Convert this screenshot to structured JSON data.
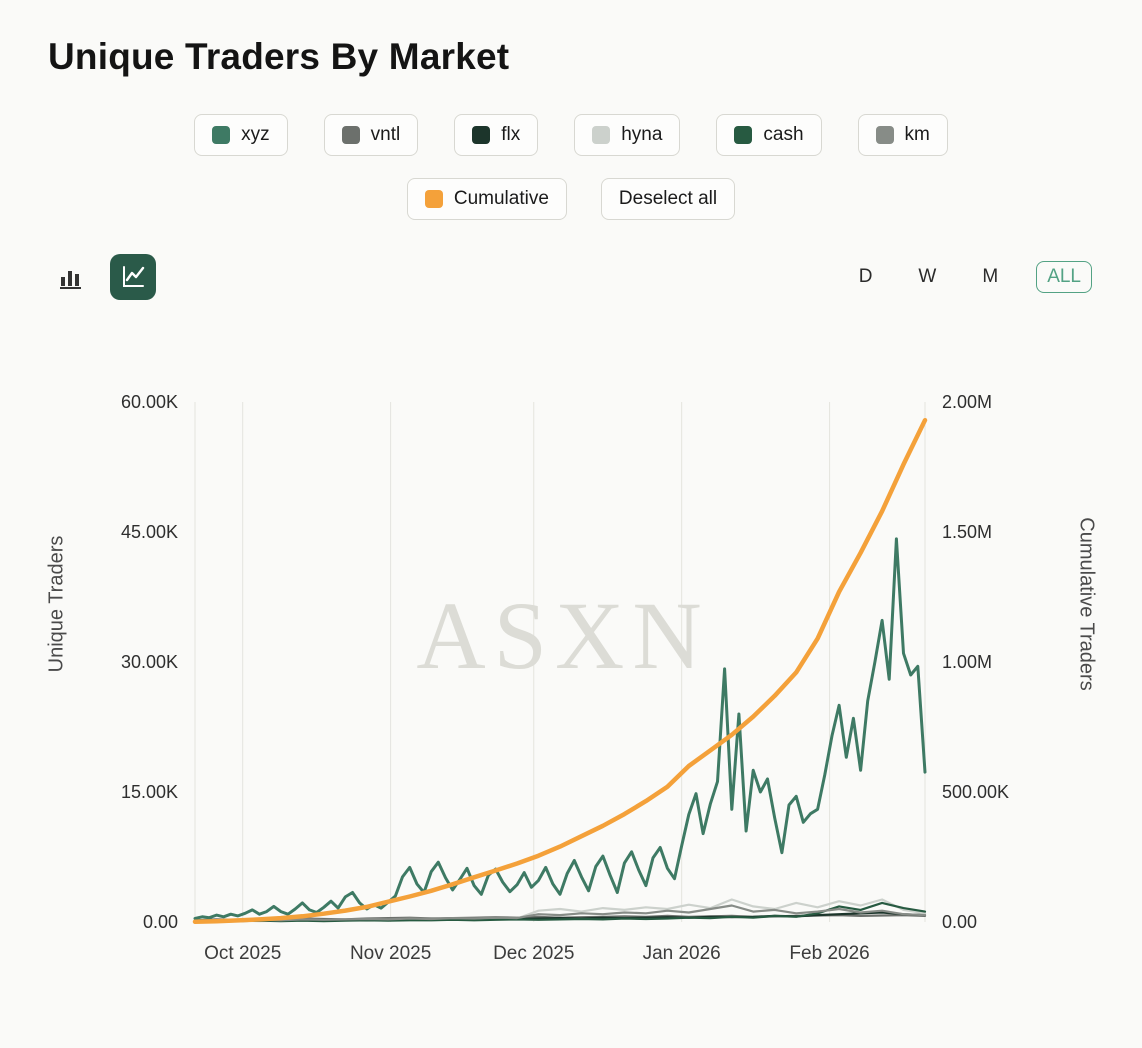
{
  "title": "Unique Traders By Market",
  "legend": {
    "markets": [
      {
        "label": "xyz",
        "color": "#3e7a64"
      },
      {
        "label": "vntl",
        "color": "#6c706c"
      },
      {
        "label": "flx",
        "color": "#1c352b"
      },
      {
        "label": "hyna",
        "color": "#ccd1cc"
      },
      {
        "label": "cash",
        "color": "#275a41"
      },
      {
        "label": "km",
        "color": "#878c87"
      }
    ],
    "cumulative": {
      "label": "Cumulative",
      "color": "#f4a13a"
    },
    "deselect_label": "Deselect all"
  },
  "toolbar": {
    "chart_types": [
      {
        "name": "bar",
        "active": false
      },
      {
        "name": "line",
        "active": true
      }
    ],
    "ranges": [
      {
        "label": "D",
        "active": false
      },
      {
        "label": "W",
        "active": false
      },
      {
        "label": "M",
        "active": false
      },
      {
        "label": "ALL",
        "active": true
      }
    ],
    "accent_color": "#53a284",
    "selected_bg": "#2a5a49"
  },
  "chart_data": {
    "type": "line",
    "watermark": "ASXN",
    "x_unit": "days since 2025-09-21",
    "x_max": 153,
    "x_gridlines": [
      {
        "day": 10,
        "label": "Oct 2025"
      },
      {
        "day": 41,
        "label": "Nov 2025"
      },
      {
        "day": 71,
        "label": "Dec 2025"
      },
      {
        "day": 102,
        "label": "Jan 2026"
      },
      {
        "day": 133,
        "label": "Feb 2026"
      }
    ],
    "left_axis": {
      "title": "Unique Traders",
      "max": 60,
      "unit": "thousands",
      "ticks": [
        {
          "v": 0,
          "label": "0.00"
        },
        {
          "v": 15,
          "label": "15.00K"
        },
        {
          "v": 30,
          "label": "30.00K"
        },
        {
          "v": 45,
          "label": "45.00K"
        },
        {
          "v": 60,
          "label": "60.00K"
        }
      ]
    },
    "right_axis": {
      "title": "Cumulative Traders",
      "max": 2000,
      "unit": "thousands",
      "ticks": [
        {
          "v": 0,
          "label": "0.00"
        },
        {
          "v": 500,
          "label": "500.00K"
        },
        {
          "v": 1000,
          "label": "1.00M"
        },
        {
          "v": 1500,
          "label": "1.50M"
        },
        {
          "v": 2000,
          "label": "2.00M"
        }
      ]
    },
    "series": [
      {
        "name": "vntl",
        "axis": "left",
        "color": "#6c706c",
        "width": 2.2,
        "x": {
          "start": 0,
          "step": 4.5
        },
        "values": [
          0.2,
          0.3,
          0.25,
          0.35,
          0.3,
          0.4,
          0.35,
          0.3,
          0.4,
          0.45,
          0.5,
          0.4,
          0.45,
          0.5,
          0.55,
          0.5,
          0.6,
          0.5,
          0.55,
          0.6,
          0.65,
          0.6,
          0.7,
          0.6,
          0.65,
          0.7,
          0.6,
          0.65,
          0.7,
          0.75,
          0.8,
          0.7,
          0.75,
          0.8,
          0.7
        ]
      },
      {
        "name": "flx",
        "axis": "left",
        "color": "#1c352b",
        "width": 2.2,
        "x": {
          "start": 0,
          "step": 4.5
        },
        "values": [
          0.1,
          0.15,
          0.1,
          0.2,
          0.15,
          0.2,
          0.25,
          0.2,
          0.3,
          0.25,
          0.3,
          0.35,
          0.3,
          0.35,
          0.4,
          0.35,
          0.4,
          0.45,
          0.4,
          0.5,
          0.45,
          0.5,
          0.55,
          0.5,
          0.6,
          0.55,
          0.6,
          0.7,
          0.65,
          0.8,
          0.9,
          1.0,
          1.1,
          0.9,
          0.8
        ]
      },
      {
        "name": "hyna",
        "axis": "left",
        "color": "#ccd1cc",
        "width": 2.2,
        "x": {
          "start": 0,
          "step": 4.5
        },
        "values": [
          0.1,
          0.1,
          0.15,
          0.1,
          0.15,
          0.2,
          0.15,
          0.2,
          0.15,
          0.2,
          0.25,
          0.2,
          0.3,
          0.25,
          0.3,
          0.4,
          1.3,
          1.5,
          1.2,
          1.6,
          1.4,
          1.7,
          1.5,
          2.0,
          1.6,
          2.6,
          1.8,
          1.5,
          2.2,
          1.7,
          2.4,
          1.9,
          2.6,
          1.4,
          1.0
        ]
      },
      {
        "name": "cash",
        "axis": "left",
        "color": "#275a41",
        "width": 2.2,
        "x": {
          "start": 0,
          "step": 4.5
        },
        "values": [
          0.1,
          0.1,
          0.1,
          0.15,
          0.1,
          0.15,
          0.1,
          0.15,
          0.2,
          0.15,
          0.2,
          0.2,
          0.25,
          0.2,
          0.25,
          0.3,
          0.25,
          0.3,
          0.35,
          0.3,
          0.4,
          0.35,
          0.4,
          0.5,
          0.45,
          0.6,
          0.5,
          0.7,
          0.6,
          1.0,
          1.8,
          1.4,
          2.2,
          1.6,
          1.2
        ]
      },
      {
        "name": "km",
        "axis": "left",
        "color": "#878c87",
        "width": 2.2,
        "x": {
          "start": 0,
          "step": 4.5
        },
        "values": [
          0.15,
          0.2,
          0.15,
          0.25,
          0.2,
          0.3,
          0.25,
          0.3,
          0.35,
          0.3,
          0.4,
          0.35,
          0.45,
          0.4,
          0.5,
          0.45,
          0.9,
          0.8,
          1.0,
          0.9,
          1.1,
          1.0,
          1.3,
          1.1,
          1.5,
          1.9,
          1.2,
          1.4,
          1.0,
          1.2,
          1.5,
          1.1,
          1.3,
          0.9,
          0.8
        ]
      },
      {
        "name": "xyz",
        "axis": "left",
        "color": "#3e7a64",
        "width": 3,
        "x": {
          "start": 0,
          "step": 1.5
        },
        "values": [
          0.4,
          0.6,
          0.5,
          0.8,
          0.6,
          0.9,
          0.7,
          1.0,
          1.4,
          0.9,
          1.2,
          1.8,
          1.2,
          0.9,
          1.5,
          2.2,
          1.4,
          1.1,
          1.7,
          2.4,
          1.6,
          2.9,
          3.4,
          2.2,
          1.5,
          2.0,
          1.6,
          2.3,
          3.0,
          5.2,
          6.3,
          4.4,
          3.4,
          5.8,
          6.9,
          5.1,
          3.7,
          4.9,
          6.2,
          4.2,
          3.2,
          5.4,
          6.1,
          4.6,
          3.5,
          4.3,
          5.7,
          4.0,
          4.8,
          6.3,
          4.4,
          3.2,
          5.6,
          7.1,
          5.2,
          3.6,
          6.4,
          7.6,
          5.4,
          3.4,
          6.8,
          8.1,
          6.0,
          4.2,
          7.4,
          8.6,
          6.2,
          5.0,
          8.8,
          12.4,
          14.8,
          10.2,
          13.6,
          16.2,
          29.2,
          13.0,
          24.0,
          10.5,
          17.5,
          15.0,
          16.5,
          12.0,
          8.0,
          13.5,
          14.5,
          11.5,
          12.5,
          13.0,
          17.0,
          21.5,
          25.0,
          19.0,
          23.5,
          17.5,
          25.5,
          30.0,
          34.8,
          28.0,
          44.2,
          31.0,
          28.5,
          29.5,
          17.3
        ]
      },
      {
        "name": "cumulative",
        "axis": "right",
        "color": "#f4a13a",
        "width": 4.5,
        "x": {
          "start": 0,
          "step": 4.5
        },
        "values": [
          1,
          3,
          6,
          10,
          15,
          22,
          32,
          44,
          58,
          78,
          98,
          120,
          145,
          172,
          198,
          225,
          255,
          290,
          330,
          370,
          415,
          465,
          520,
          600,
          660,
          720,
          790,
          870,
          960,
          1090,
          1270,
          1420,
          1580,
          1760,
          1930
        ]
      }
    ]
  }
}
